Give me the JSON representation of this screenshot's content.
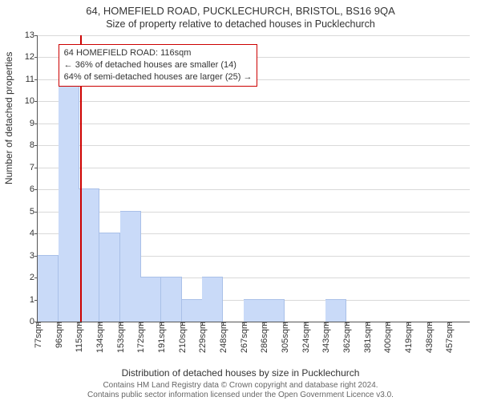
{
  "title": "64, HOMEFIELD ROAD, PUCKLECHURCH, BRISTOL, BS16 9QA",
  "subtitle": "Size of property relative to detached houses in Pucklechurch",
  "yaxis_label": "Number of detached properties",
  "xaxis_label": "Distribution of detached houses by size in Pucklechurch",
  "attribution_line1": "Contains HM Land Registry data © Crown copyright and database right 2024.",
  "attribution_line2": "Contains public sector information licensed under the Open Government Licence v3.0.",
  "chart": {
    "type": "histogram",
    "background_color": "#ffffff",
    "grid_color": "#d9d9d9",
    "axis_color": "#555555",
    "text_color": "#333333",
    "bar_color": "#c9daf8",
    "bar_border_color": "#a9c0e8",
    "marker_color": "#cc0000",
    "callout_border_color": "#cc0000",
    "callout_bg": "#ffffff",
    "yticks": [
      0,
      1,
      2,
      3,
      4,
      5,
      6,
      7,
      8,
      9,
      10,
      11,
      12,
      13
    ],
    "ylim_max": 13,
    "xticks": [
      77,
      96,
      115,
      134,
      153,
      172,
      191,
      210,
      229,
      248,
      267,
      286,
      305,
      324,
      343,
      362,
      381,
      400,
      419,
      438,
      457
    ],
    "xunit": "sqm",
    "xmin": 77,
    "xmax": 476,
    "bar_width_sqm": 19,
    "bars": [
      {
        "x": 77,
        "h": 3
      },
      {
        "x": 96,
        "h": 11
      },
      {
        "x": 115,
        "h": 6
      },
      {
        "x": 134,
        "h": 4
      },
      {
        "x": 153,
        "h": 5
      },
      {
        "x": 172,
        "h": 2
      },
      {
        "x": 191,
        "h": 2
      },
      {
        "x": 210,
        "h": 1
      },
      {
        "x": 229,
        "h": 2
      },
      {
        "x": 267,
        "h": 1
      },
      {
        "x": 286,
        "h": 1
      },
      {
        "x": 343,
        "h": 1
      }
    ],
    "marker_x": 116,
    "callout": {
      "line1": "64 HOMEFIELD ROAD: 116sqm",
      "line2": "← 36% of detached houses are smaller (14)",
      "line3": "64% of semi-detached houses are larger (25) →",
      "left_sqm": 96,
      "top_yval": 12.6
    }
  }
}
